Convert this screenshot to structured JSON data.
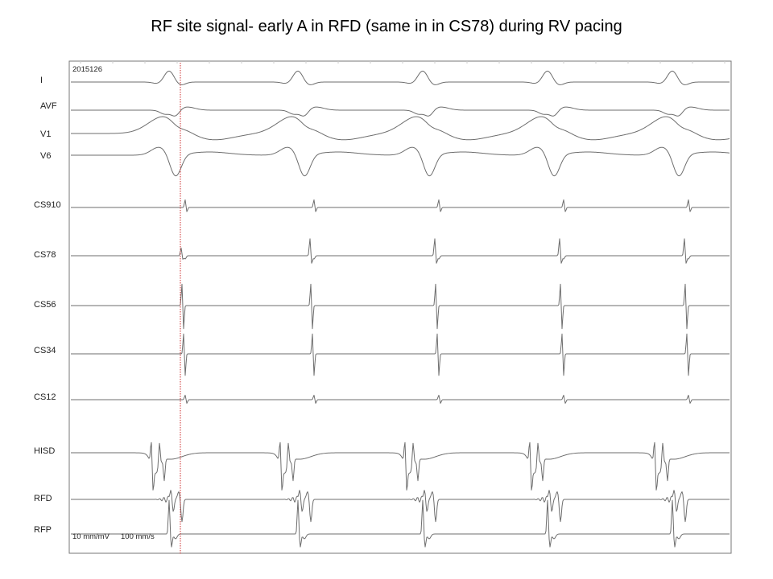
{
  "title": "RF site signal- early A in RFD (same in in CS78) during RV pacing",
  "chart_data": {
    "type": "line",
    "series": [
      {
        "name": "I",
        "group": "surface"
      },
      {
        "name": "AVF",
        "group": "surface"
      },
      {
        "name": "V1",
        "group": "surface"
      },
      {
        "name": "V6",
        "group": "surface"
      },
      {
        "name": "CS910",
        "group": "intracardiac"
      },
      {
        "name": "CS78",
        "group": "intracardiac"
      },
      {
        "name": "CS56",
        "group": "intracardiac"
      },
      {
        "name": "CS34",
        "group": "intracardiac"
      },
      {
        "name": "CS12",
        "group": "intracardiac"
      },
      {
        "name": "HISD",
        "group": "intracardiac"
      },
      {
        "name": "RFD",
        "group": "intracardiac"
      },
      {
        "name": "RFP",
        "group": "intracardiac"
      }
    ],
    "annotations": {
      "recording_id": "2015126",
      "gain": "10 mm/mV",
      "sweep_speed": "100 mm/s"
    },
    "beats_shown": 5,
    "marker_color": "#cc2a2a"
  }
}
